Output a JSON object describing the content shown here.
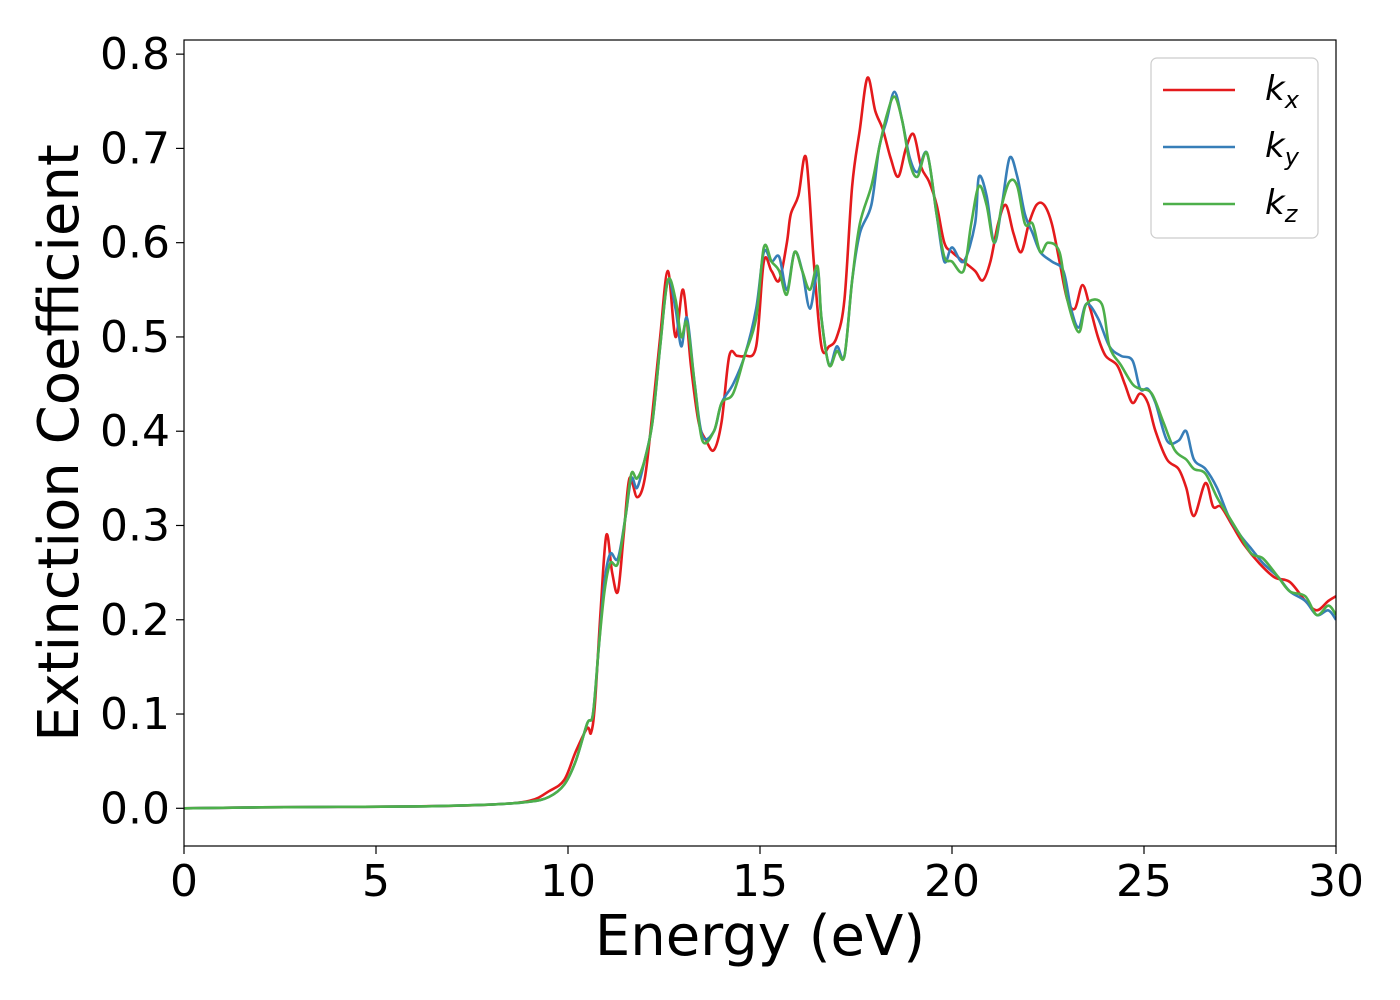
{
  "chart_data": {
    "type": "line",
    "title": "",
    "xlabel": "Energy (eV)",
    "ylabel": "Extinction Coefficient",
    "xlim": [
      0,
      30
    ],
    "ylim": [
      -0.04,
      0.815
    ],
    "xticks": [
      "0",
      "5",
      "10",
      "15",
      "20",
      "25",
      "30"
    ],
    "yticks": [
      "0.0",
      "0.1",
      "0.2",
      "0.3",
      "0.4",
      "0.5",
      "0.6",
      "0.7",
      "0.8"
    ],
    "grid": false,
    "legend_position": "top-right",
    "series": [
      {
        "name": "k_x",
        "legend_main": "k",
        "legend_sub": "x",
        "color": "#e41a1c",
        "points": [
          [
            0,
            0
          ],
          [
            2,
            0.001
          ],
          [
            4,
            0.0015
          ],
          [
            6,
            0.002
          ],
          [
            8,
            0.004
          ],
          [
            9,
            0.008
          ],
          [
            9.5,
            0.018
          ],
          [
            9.9,
            0.03
          ],
          [
            10.2,
            0.06
          ],
          [
            10.5,
            0.085
          ],
          [
            10.6,
            0.08
          ],
          [
            10.7,
            0.11
          ],
          [
            10.85,
            0.21
          ],
          [
            11.0,
            0.29
          ],
          [
            11.15,
            0.25
          ],
          [
            11.3,
            0.23
          ],
          [
            11.45,
            0.29
          ],
          [
            11.6,
            0.35
          ],
          [
            11.8,
            0.33
          ],
          [
            12.0,
            0.35
          ],
          [
            12.2,
            0.42
          ],
          [
            12.4,
            0.5
          ],
          [
            12.6,
            0.57
          ],
          [
            12.8,
            0.5
          ],
          [
            13.0,
            0.55
          ],
          [
            13.2,
            0.47
          ],
          [
            13.4,
            0.41
          ],
          [
            13.6,
            0.39
          ],
          [
            13.8,
            0.38
          ],
          [
            14.0,
            0.41
          ],
          [
            14.2,
            0.48
          ],
          [
            14.4,
            0.48
          ],
          [
            14.6,
            0.48
          ],
          [
            14.9,
            0.49
          ],
          [
            15.1,
            0.58
          ],
          [
            15.3,
            0.57
          ],
          [
            15.5,
            0.56
          ],
          [
            15.7,
            0.6
          ],
          [
            15.8,
            0.63
          ],
          [
            16.0,
            0.65
          ],
          [
            16.2,
            0.69
          ],
          [
            16.4,
            0.58
          ],
          [
            16.6,
            0.49
          ],
          [
            16.8,
            0.49
          ],
          [
            17.0,
            0.5
          ],
          [
            17.2,
            0.54
          ],
          [
            17.4,
            0.66
          ],
          [
            17.6,
            0.72
          ],
          [
            17.8,
            0.775
          ],
          [
            18.0,
            0.74
          ],
          [
            18.2,
            0.72
          ],
          [
            18.4,
            0.69
          ],
          [
            18.6,
            0.67
          ],
          [
            18.8,
            0.7
          ],
          [
            19.0,
            0.715
          ],
          [
            19.2,
            0.68
          ],
          [
            19.4,
            0.665
          ],
          [
            19.6,
            0.64
          ],
          [
            19.8,
            0.6
          ],
          [
            20.0,
            0.59
          ],
          [
            20.3,
            0.58
          ],
          [
            20.6,
            0.57
          ],
          [
            20.8,
            0.56
          ],
          [
            21.0,
            0.58
          ],
          [
            21.2,
            0.62
          ],
          [
            21.4,
            0.64
          ],
          [
            21.6,
            0.61
          ],
          [
            21.8,
            0.59
          ],
          [
            22.0,
            0.62
          ],
          [
            22.2,
            0.64
          ],
          [
            22.4,
            0.64
          ],
          [
            22.6,
            0.62
          ],
          [
            22.8,
            0.58
          ],
          [
            23.0,
            0.54
          ],
          [
            23.2,
            0.53
          ],
          [
            23.4,
            0.555
          ],
          [
            23.6,
            0.53
          ],
          [
            23.8,
            0.5
          ],
          [
            24.0,
            0.48
          ],
          [
            24.3,
            0.47
          ],
          [
            24.5,
            0.45
          ],
          [
            24.7,
            0.43
          ],
          [
            24.9,
            0.44
          ],
          [
            25.1,
            0.43
          ],
          [
            25.3,
            0.4
          ],
          [
            25.6,
            0.37
          ],
          [
            25.9,
            0.36
          ],
          [
            26.1,
            0.34
          ],
          [
            26.3,
            0.31
          ],
          [
            26.6,
            0.345
          ],
          [
            26.8,
            0.32
          ],
          [
            27.0,
            0.32
          ],
          [
            27.3,
            0.3
          ],
          [
            27.6,
            0.28
          ],
          [
            28.0,
            0.26
          ],
          [
            28.4,
            0.245
          ],
          [
            28.8,
            0.24
          ],
          [
            29.2,
            0.22
          ],
          [
            29.5,
            0.21
          ],
          [
            29.8,
            0.22
          ],
          [
            30.0,
            0.225
          ]
        ]
      },
      {
        "name": "k_y",
        "legend_main": "k",
        "legend_sub": "y",
        "color": "#377eb8",
        "points": [
          [
            0,
            0
          ],
          [
            2,
            0.001
          ],
          [
            4,
            0.0015
          ],
          [
            6,
            0.002
          ],
          [
            8,
            0.004
          ],
          [
            9,
            0.007
          ],
          [
            9.5,
            0.012
          ],
          [
            9.9,
            0.025
          ],
          [
            10.2,
            0.05
          ],
          [
            10.5,
            0.09
          ],
          [
            10.65,
            0.1
          ],
          [
            10.8,
            0.17
          ],
          [
            10.95,
            0.24
          ],
          [
            11.1,
            0.27
          ],
          [
            11.3,
            0.265
          ],
          [
            11.5,
            0.31
          ],
          [
            11.65,
            0.35
          ],
          [
            11.8,
            0.34
          ],
          [
            12.0,
            0.37
          ],
          [
            12.2,
            0.41
          ],
          [
            12.4,
            0.49
          ],
          [
            12.6,
            0.56
          ],
          [
            12.8,
            0.53
          ],
          [
            12.95,
            0.49
          ],
          [
            13.1,
            0.52
          ],
          [
            13.3,
            0.45
          ],
          [
            13.5,
            0.395
          ],
          [
            13.8,
            0.4
          ],
          [
            14.0,
            0.43
          ],
          [
            14.3,
            0.45
          ],
          [
            14.6,
            0.48
          ],
          [
            14.9,
            0.53
          ],
          [
            15.1,
            0.59
          ],
          [
            15.3,
            0.58
          ],
          [
            15.5,
            0.585
          ],
          [
            15.7,
            0.55
          ],
          [
            15.9,
            0.59
          ],
          [
            16.1,
            0.57
          ],
          [
            16.3,
            0.53
          ],
          [
            16.5,
            0.57
          ],
          [
            16.6,
            0.52
          ],
          [
            16.8,
            0.47
          ],
          [
            17.0,
            0.49
          ],
          [
            17.2,
            0.48
          ],
          [
            17.4,
            0.56
          ],
          [
            17.6,
            0.61
          ],
          [
            17.9,
            0.64
          ],
          [
            18.1,
            0.7
          ],
          [
            18.3,
            0.73
          ],
          [
            18.5,
            0.76
          ],
          [
            18.7,
            0.73
          ],
          [
            18.9,
            0.69
          ],
          [
            19.1,
            0.675
          ],
          [
            19.35,
            0.695
          ],
          [
            19.6,
            0.63
          ],
          [
            19.8,
            0.58
          ],
          [
            20.0,
            0.595
          ],
          [
            20.3,
            0.58
          ],
          [
            20.6,
            0.62
          ],
          [
            20.7,
            0.67
          ],
          [
            20.9,
            0.65
          ],
          [
            21.1,
            0.6
          ],
          [
            21.3,
            0.64
          ],
          [
            21.5,
            0.69
          ],
          [
            21.7,
            0.67
          ],
          [
            21.9,
            0.63
          ],
          [
            22.1,
            0.61
          ],
          [
            22.3,
            0.59
          ],
          [
            22.6,
            0.58
          ],
          [
            22.9,
            0.57
          ],
          [
            23.1,
            0.53
          ],
          [
            23.3,
            0.51
          ],
          [
            23.5,
            0.535
          ],
          [
            23.8,
            0.52
          ],
          [
            24.1,
            0.49
          ],
          [
            24.4,
            0.48
          ],
          [
            24.7,
            0.475
          ],
          [
            24.9,
            0.445
          ],
          [
            25.1,
            0.445
          ],
          [
            25.3,
            0.43
          ],
          [
            25.6,
            0.39
          ],
          [
            25.9,
            0.39
          ],
          [
            26.1,
            0.4
          ],
          [
            26.3,
            0.37
          ],
          [
            26.6,
            0.36
          ],
          [
            26.9,
            0.34
          ],
          [
            27.2,
            0.31
          ],
          [
            27.5,
            0.29
          ],
          [
            27.8,
            0.275
          ],
          [
            28.1,
            0.26
          ],
          [
            28.5,
            0.245
          ],
          [
            28.8,
            0.23
          ],
          [
            29.2,
            0.22
          ],
          [
            29.5,
            0.205
          ],
          [
            29.8,
            0.21
          ],
          [
            30.0,
            0.2
          ]
        ]
      },
      {
        "name": "k_z",
        "legend_main": "k",
        "legend_sub": "z",
        "color": "#4daf4a",
        "points": [
          [
            0,
            0
          ],
          [
            2,
            0.001
          ],
          [
            4,
            0.0015
          ],
          [
            6,
            0.002
          ],
          [
            8,
            0.004
          ],
          [
            9,
            0.007
          ],
          [
            9.5,
            0.012
          ],
          [
            9.9,
            0.025
          ],
          [
            10.2,
            0.05
          ],
          [
            10.5,
            0.09
          ],
          [
            10.65,
            0.1
          ],
          [
            10.8,
            0.17
          ],
          [
            10.95,
            0.23
          ],
          [
            11.1,
            0.26
          ],
          [
            11.3,
            0.26
          ],
          [
            11.5,
            0.31
          ],
          [
            11.65,
            0.355
          ],
          [
            11.8,
            0.35
          ],
          [
            12.0,
            0.37
          ],
          [
            12.2,
            0.41
          ],
          [
            12.4,
            0.49
          ],
          [
            12.6,
            0.56
          ],
          [
            12.8,
            0.54
          ],
          [
            12.95,
            0.5
          ],
          [
            13.1,
            0.515
          ],
          [
            13.3,
            0.45
          ],
          [
            13.5,
            0.39
          ],
          [
            13.8,
            0.4
          ],
          [
            14.0,
            0.43
          ],
          [
            14.3,
            0.44
          ],
          [
            14.6,
            0.48
          ],
          [
            14.9,
            0.52
          ],
          [
            15.1,
            0.595
          ],
          [
            15.3,
            0.58
          ],
          [
            15.5,
            0.57
          ],
          [
            15.7,
            0.545
          ],
          [
            15.9,
            0.59
          ],
          [
            16.1,
            0.57
          ],
          [
            16.3,
            0.55
          ],
          [
            16.5,
            0.575
          ],
          [
            16.6,
            0.52
          ],
          [
            16.8,
            0.47
          ],
          [
            17.0,
            0.485
          ],
          [
            17.2,
            0.48
          ],
          [
            17.4,
            0.56
          ],
          [
            17.6,
            0.62
          ],
          [
            17.9,
            0.66
          ],
          [
            18.1,
            0.7
          ],
          [
            18.3,
            0.735
          ],
          [
            18.5,
            0.755
          ],
          [
            18.7,
            0.73
          ],
          [
            18.9,
            0.685
          ],
          [
            19.1,
            0.67
          ],
          [
            19.35,
            0.695
          ],
          [
            19.6,
            0.63
          ],
          [
            19.8,
            0.585
          ],
          [
            20.0,
            0.58
          ],
          [
            20.3,
            0.57
          ],
          [
            20.5,
            0.62
          ],
          [
            20.7,
            0.66
          ],
          [
            20.9,
            0.64
          ],
          [
            21.1,
            0.6
          ],
          [
            21.3,
            0.64
          ],
          [
            21.5,
            0.665
          ],
          [
            21.7,
            0.66
          ],
          [
            21.9,
            0.62
          ],
          [
            22.1,
            0.62
          ],
          [
            22.3,
            0.59
          ],
          [
            22.5,
            0.6
          ],
          [
            22.8,
            0.59
          ],
          [
            23.0,
            0.54
          ],
          [
            23.3,
            0.505
          ],
          [
            23.5,
            0.535
          ],
          [
            23.9,
            0.535
          ],
          [
            24.1,
            0.49
          ],
          [
            24.4,
            0.47
          ],
          [
            24.7,
            0.45
          ],
          [
            24.9,
            0.445
          ],
          [
            25.2,
            0.44
          ],
          [
            25.5,
            0.41
          ],
          [
            25.8,
            0.38
          ],
          [
            26.1,
            0.37
          ],
          [
            26.3,
            0.36
          ],
          [
            26.6,
            0.355
          ],
          [
            26.9,
            0.33
          ],
          [
            27.2,
            0.31
          ],
          [
            27.5,
            0.29
          ],
          [
            27.8,
            0.27
          ],
          [
            28.1,
            0.265
          ],
          [
            28.5,
            0.245
          ],
          [
            28.8,
            0.23
          ],
          [
            29.2,
            0.225
          ],
          [
            29.5,
            0.205
          ],
          [
            29.8,
            0.215
          ],
          [
            30.0,
            0.205
          ]
        ]
      }
    ]
  }
}
